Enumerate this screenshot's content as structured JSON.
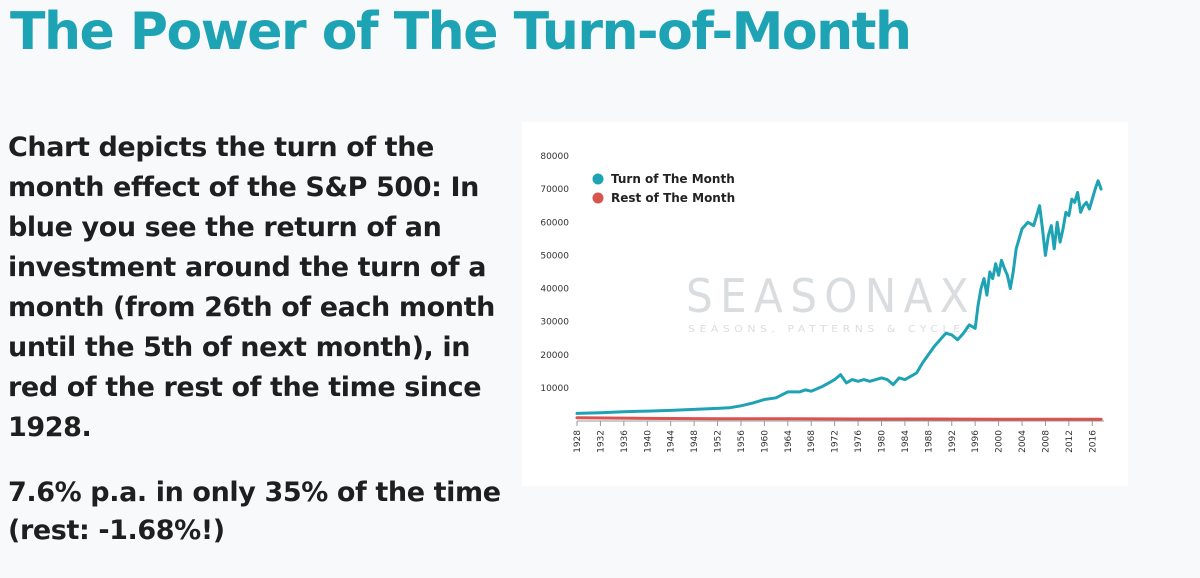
{
  "title": "The Power of The Turn-of-Month",
  "description": "Chart depicts the turn of the month effect of the S&P 500: In blue you see the return of an investment around the turn of a month (from 26th of each month until the 5th of next month), in red of the rest of the time since 1928.",
  "stat": {
    "line1": "7.6% p.a. in only 35% of the time",
    "line2": "(rest: -1.68%!)"
  },
  "watermark": {
    "brand": "SEASONAX",
    "tagline": "SEASONS, PATTERNS & CYCLES"
  },
  "colors": {
    "title": "#1ea3b5",
    "turn_of_month": "#1ea3b5",
    "rest_of_month": "#d9534f"
  },
  "chart_data": {
    "type": "line",
    "title": "",
    "xlabel": "",
    "ylabel": "",
    "xlim": [
      1928,
      2018
    ],
    "ylim": [
      0,
      80000
    ],
    "y_ticks": [
      10000,
      20000,
      30000,
      40000,
      50000,
      60000,
      70000,
      80000
    ],
    "y_tick_labels": [
      "10000",
      "20000",
      "30000",
      "40000",
      "50000",
      "60000",
      "70000",
      "80000"
    ],
    "x_ticks": [
      1928,
      1932,
      1936,
      1940,
      1944,
      1948,
      1952,
      1956,
      1960,
      1964,
      1968,
      1972,
      1976,
      1980,
      1984,
      1988,
      1992,
      1996,
      2000,
      2004,
      2008,
      2012,
      2016
    ],
    "x_tick_labels": [
      "1928",
      "1932",
      "1936",
      "1940",
      "1944",
      "1948",
      "1952",
      "1956",
      "1960",
      "1964",
      "1968",
      "1972",
      "1976",
      "1980",
      "1984",
      "1988",
      "1992",
      "1996",
      "2000",
      "2004",
      "2008",
      "2012",
      "2016"
    ],
    "grid": false,
    "legend_position": "top-left",
    "series": [
      {
        "name": "Turn of The Month",
        "color": "#1ea3b5",
        "x": [
          1928,
          1932,
          1936,
          1940,
          1944,
          1948,
          1952,
          1954,
          1956,
          1958,
          1960,
          1962,
          1964,
          1966,
          1967,
          1968,
          1970,
          1971,
          1972,
          1973,
          1974,
          1975,
          1976,
          1977,
          1978,
          1980,
          1981,
          1982,
          1983,
          1984,
          1985,
          1986,
          1987,
          1988,
          1989,
          1990,
          1991,
          1992,
          1993,
          1994,
          1995,
          1996,
          1996.5,
          1997,
          1997.5,
          1998,
          1998.5,
          1999,
          1999.5,
          2000,
          2000.5,
          2001,
          2001.5,
          2002,
          2002.5,
          2003,
          2003.5,
          2004,
          2005,
          2006,
          2007,
          2007.5,
          2008,
          2008.5,
          2009,
          2009.5,
          2010,
          2010.5,
          2011,
          2011.5,
          2012,
          2012.5,
          2013,
          2013.5,
          2014,
          2014.5,
          2015,
          2015.5,
          2016,
          2016.5,
          2017,
          2017.5
        ],
        "values": [
          2300,
          2500,
          2800,
          3000,
          3200,
          3500,
          3800,
          4000,
          4600,
          5400,
          6500,
          7000,
          8800,
          8800,
          9400,
          9000,
          10500,
          11500,
          12500,
          14000,
          11500,
          12500,
          12000,
          12500,
          12000,
          13000,
          12500,
          11000,
          13000,
          12500,
          13500,
          14500,
          17500,
          20000,
          22500,
          24500,
          26500,
          26000,
          24500,
          26500,
          29000,
          28000,
          35000,
          40000,
          43000,
          38000,
          45000,
          43000,
          47500,
          44000,
          48500,
          46000,
          44000,
          40000,
          45000,
          52000,
          55000,
          58000,
          60000,
          59000,
          65000,
          58000,
          50000,
          56000,
          59000,
          52000,
          60000,
          54000,
          58000,
          63000,
          62000,
          67000,
          66000,
          69000,
          63000,
          65000,
          66000,
          64000,
          67000,
          70000,
          72500,
          70000
        ]
      },
      {
        "name": "Rest of The Month",
        "color": "#d9534f",
        "x": [
          1928,
          1940,
          1952,
          1964,
          1976,
          1988,
          2000,
          2012,
          2017.5
        ],
        "values": [
          1000,
          800,
          700,
          650,
          600,
          600,
          550,
          500,
          500
        ]
      }
    ]
  }
}
